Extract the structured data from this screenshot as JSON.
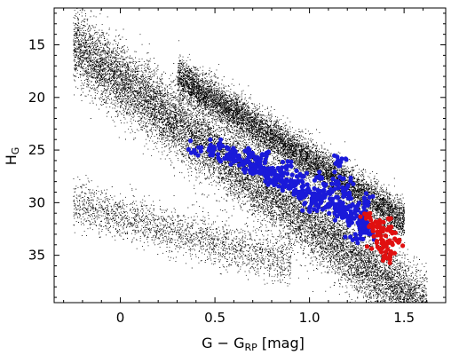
{
  "chart_data": {
    "type": "scatter",
    "title": "",
    "xlabel": {
      "main": "G − G",
      "sub": "RP",
      "unit": " [mag]"
    },
    "ylabel": {
      "main": "H",
      "sub": "G"
    },
    "xlim": [
      -0.35,
      1.72
    ],
    "ylim": [
      39.5,
      11.5
    ],
    "y_inverted": true,
    "x_ticks": [
      0,
      0.5,
      1.0,
      1.5
    ],
    "x_tick_labels": [
      "0",
      "0.5",
      "1.0",
      "1.5"
    ],
    "y_ticks": [
      15,
      20,
      25,
      30,
      35
    ],
    "y_tick_labels": [
      "15",
      "20",
      "25",
      "30",
      "35"
    ],
    "grid": false,
    "legend": "none",
    "series": [
      {
        "marker": "small-dot",
        "color": "#000000",
        "components": [
          {
            "shape": "band",
            "x_range": [
              -0.25,
              1.62
            ],
            "y_start": 15.0,
            "slope": 13.5,
            "spread": 2.8,
            "count": 14000
          },
          {
            "shape": "dense-core",
            "x_range": [
              0.3,
              1.5
            ],
            "y_start": 18.0,
            "slope": 11.5,
            "spread": 1.6,
            "count": 9000
          },
          {
            "shape": "faint-sequence",
            "x_range": [
              -0.25,
              0.9
            ],
            "y_start": 30.0,
            "slope": 5.0,
            "spread": 1.8,
            "count": 2200
          }
        ]
      },
      {
        "marker": "dot",
        "color": "#1a1ad9",
        "points": [
          [
            0.39,
            25.0
          ],
          [
            0.47,
            24.8
          ],
          [
            0.49,
            25.2
          ],
          [
            0.52,
            24.6
          ],
          [
            0.55,
            25.8
          ],
          [
            0.58,
            25.3
          ],
          [
            0.6,
            26.0
          ],
          [
            0.62,
            25.6
          ],
          [
            0.65,
            26.4
          ],
          [
            0.67,
            26.0
          ],
          [
            0.7,
            26.8
          ],
          [
            0.72,
            26.3
          ],
          [
            0.74,
            27.2
          ],
          [
            0.76,
            26.7
          ],
          [
            0.78,
            27.6
          ],
          [
            0.8,
            27.1
          ],
          [
            0.82,
            28.0
          ],
          [
            0.84,
            27.5
          ],
          [
            0.86,
            28.3
          ],
          [
            0.88,
            27.8
          ],
          [
            0.9,
            28.6
          ],
          [
            0.92,
            28.2
          ],
          [
            0.94,
            29.0
          ],
          [
            0.96,
            28.5
          ],
          [
            0.98,
            29.3
          ],
          [
            1.0,
            28.9
          ],
          [
            1.02,
            29.7
          ],
          [
            1.04,
            29.2
          ],
          [
            1.06,
            30.0
          ],
          [
            1.08,
            29.5
          ],
          [
            1.1,
            30.4
          ],
          [
            1.12,
            29.9
          ],
          [
            1.14,
            30.8
          ],
          [
            1.16,
            30.3
          ],
          [
            1.18,
            31.2
          ],
          [
            1.2,
            30.6
          ],
          [
            1.22,
            31.6
          ],
          [
            1.24,
            31.0
          ],
          [
            1.26,
            32.0
          ],
          [
            1.28,
            31.5
          ],
          [
            1.3,
            32.6
          ],
          [
            1.32,
            33.0
          ],
          [
            0.75,
            25.5
          ],
          [
            0.9,
            26.5
          ],
          [
            1.05,
            27.5
          ],
          [
            1.15,
            28.0
          ],
          [
            1.15,
            26.0
          ],
          [
            1.2,
            28.5
          ],
          [
            1.1,
            29.0
          ],
          [
            0.85,
            27.0
          ],
          [
            1.0,
            30.5
          ],
          [
            1.25,
            33.5
          ],
          [
            1.3,
            30.0
          ],
          [
            1.18,
            29.0
          ],
          [
            0.95,
            27.4
          ],
          [
            1.08,
            28.4
          ],
          [
            0.68,
            25.4
          ],
          [
            1.22,
            29.6
          ],
          [
            1.28,
            32.8
          ]
        ]
      },
      {
        "marker": "dot",
        "color": "#e01010",
        "points": [
          [
            1.3,
            31.5
          ],
          [
            1.32,
            31.0
          ],
          [
            1.33,
            32.3
          ],
          [
            1.35,
            31.8
          ],
          [
            1.36,
            33.0
          ],
          [
            1.37,
            32.0
          ],
          [
            1.38,
            33.5
          ],
          [
            1.39,
            32.4
          ],
          [
            1.4,
            34.0
          ],
          [
            1.41,
            32.6
          ],
          [
            1.42,
            33.8
          ],
          [
            1.43,
            31.5
          ],
          [
            1.44,
            32.8
          ],
          [
            1.45,
            34.8
          ],
          [
            1.4,
            35.0
          ],
          [
            1.38,
            34.4
          ],
          [
            1.42,
            35.3
          ],
          [
            1.36,
            34.2
          ],
          [
            1.34,
            33.2
          ],
          [
            1.46,
            33.6
          ]
        ]
      }
    ]
  }
}
